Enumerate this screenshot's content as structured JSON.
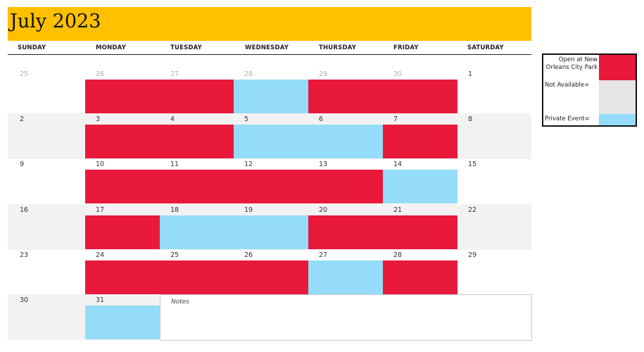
{
  "title": "July 2023",
  "weekdays": [
    "SUNDAY",
    "MONDAY",
    "TUESDAY",
    "WEDNESDAY",
    "THURSDAY",
    "FRIDAY",
    "SATURDAY"
  ],
  "colors": {
    "header": "#ffc000",
    "open": "#e8193b",
    "private": "#94dcfa",
    "unavailable": "#e6e6e6",
    "shaded_row": "#f2f2f2"
  },
  "weeks": [
    {
      "days": [
        {
          "num": "25",
          "other": true,
          "status": "none"
        },
        {
          "num": "26",
          "other": true,
          "status": "open"
        },
        {
          "num": "27",
          "other": true,
          "status": "open"
        },
        {
          "num": "28",
          "other": true,
          "status": "private"
        },
        {
          "num": "29",
          "other": true,
          "status": "open"
        },
        {
          "num": "30",
          "other": true,
          "status": "open"
        },
        {
          "num": "1",
          "other": false,
          "status": "none"
        }
      ]
    },
    {
      "days": [
        {
          "num": "2",
          "other": false,
          "status": "none"
        },
        {
          "num": "3",
          "other": false,
          "status": "open"
        },
        {
          "num": "4",
          "other": false,
          "status": "open"
        },
        {
          "num": "5",
          "other": false,
          "status": "private"
        },
        {
          "num": "6",
          "other": false,
          "status": "private"
        },
        {
          "num": "7",
          "other": false,
          "status": "open"
        },
        {
          "num": "8",
          "other": false,
          "status": "none"
        }
      ]
    },
    {
      "days": [
        {
          "num": "9",
          "other": false,
          "status": "none"
        },
        {
          "num": "10",
          "other": false,
          "status": "open"
        },
        {
          "num": "11",
          "other": false,
          "status": "open"
        },
        {
          "num": "12",
          "other": false,
          "status": "open"
        },
        {
          "num": "13",
          "other": false,
          "status": "open"
        },
        {
          "num": "14",
          "other": false,
          "status": "private"
        },
        {
          "num": "15",
          "other": false,
          "status": "none"
        }
      ]
    },
    {
      "days": [
        {
          "num": "16",
          "other": false,
          "status": "none"
        },
        {
          "num": "17",
          "other": false,
          "status": "open"
        },
        {
          "num": "18",
          "other": false,
          "status": "private"
        },
        {
          "num": "19",
          "other": false,
          "status": "private"
        },
        {
          "num": "20",
          "other": false,
          "status": "open"
        },
        {
          "num": "21",
          "other": false,
          "status": "open"
        },
        {
          "num": "22",
          "other": false,
          "status": "none"
        }
      ]
    },
    {
      "days": [
        {
          "num": "23",
          "other": false,
          "status": "none"
        },
        {
          "num": "24",
          "other": false,
          "status": "open"
        },
        {
          "num": "25",
          "other": false,
          "status": "open"
        },
        {
          "num": "26",
          "other": false,
          "status": "open"
        },
        {
          "num": "27",
          "other": false,
          "status": "private"
        },
        {
          "num": "28",
          "other": false,
          "status": "open"
        },
        {
          "num": "29",
          "other": false,
          "status": "none"
        }
      ]
    },
    {
      "days": [
        {
          "num": "30",
          "other": false,
          "status": "none"
        },
        {
          "num": "31",
          "other": false,
          "status": "private"
        }
      ]
    }
  ],
  "notes_label": "Notes",
  "legend": {
    "open": "Open at New Orleans City Park",
    "unavailable": "Not Available=",
    "private": "Private Event="
  }
}
